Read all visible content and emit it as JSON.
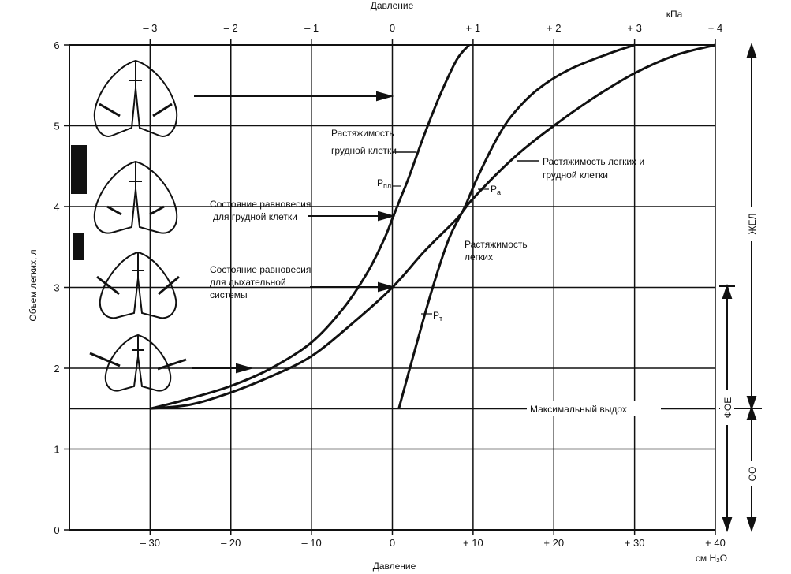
{
  "chart_data": {
    "type": "line",
    "xlabel_top": "Давление",
    "xunit_top": "кПа",
    "xlabel_bottom": "Давление",
    "xunit_bottom": "см H₂O",
    "ylabel": "Объем легких, л",
    "xlim": [
      -40,
      40
    ],
    "ylim": [
      0,
      6
    ],
    "x_ticks": [
      {
        "v": -30,
        "label": "– 30"
      },
      {
        "v": -20,
        "label": "– 20"
      },
      {
        "v": -10,
        "label": "– 10"
      },
      {
        "v": 0,
        "label": "0"
      },
      {
        "v": 10,
        "label": "+ 10"
      },
      {
        "v": 20,
        "label": "+ 20"
      },
      {
        "v": 30,
        "label": "+ 30"
      },
      {
        "v": 40,
        "label": "+ 40"
      }
    ],
    "top_ticks": [
      {
        "v": -3,
        "label": "– 3"
      },
      {
        "v": -2,
        "label": "– 2"
      },
      {
        "v": -1,
        "label": "– 1"
      },
      {
        "v": 0,
        "label": "0"
      },
      {
        "v": 1,
        "label": "+ 1"
      },
      {
        "v": 2,
        "label": "+ 2"
      },
      {
        "v": 3,
        "label": "+ 3"
      },
      {
        "v": 4,
        "label": "+ 4"
      }
    ],
    "y_ticks": [
      {
        "v": 0,
        "label": "0"
      },
      {
        "v": 1,
        "label": "1"
      },
      {
        "v": 2,
        "label": "2"
      },
      {
        "v": 3,
        "label": "3"
      },
      {
        "v": 4,
        "label": "4"
      },
      {
        "v": 5,
        "label": "5"
      },
      {
        "v": 6,
        "label": "6"
      }
    ],
    "series": [
      {
        "name": "Растяжимость грудной клетки",
        "symbol": "P",
        "subscript": "пл",
        "points": [
          [
            -30,
            1.5
          ],
          [
            -26,
            1.6
          ],
          [
            -20,
            1.78
          ],
          [
            -15,
            2.0
          ],
          [
            -10,
            2.32
          ],
          [
            -6,
            2.75
          ],
          [
            -3,
            3.2
          ],
          [
            -1,
            3.6
          ],
          [
            0,
            3.85
          ],
          [
            1,
            4.1
          ],
          [
            2,
            4.35
          ],
          [
            4,
            4.9
          ],
          [
            6,
            5.4
          ],
          [
            8,
            5.82
          ],
          [
            9.5,
            6.0
          ]
        ]
      },
      {
        "name": "Растяжимость легких и грудной клетки",
        "symbol": "P",
        "subscript": "а",
        "points": [
          [
            -30,
            1.5
          ],
          [
            -25,
            1.55
          ],
          [
            -20,
            1.7
          ],
          [
            -15,
            1.9
          ],
          [
            -10,
            2.15
          ],
          [
            -5,
            2.55
          ],
          [
            0,
            3.0
          ],
          [
            4,
            3.45
          ],
          [
            8,
            3.85
          ],
          [
            10,
            4.1
          ],
          [
            15,
            4.6
          ],
          [
            20,
            5.0
          ],
          [
            25,
            5.35
          ],
          [
            30,
            5.65
          ],
          [
            35,
            5.87
          ],
          [
            40,
            6.0
          ]
        ]
      },
      {
        "name": "Растяжимость легких",
        "symbol": "P",
        "subscript": "т",
        "points": [
          [
            0.8,
            1.5
          ],
          [
            3,
            2.3
          ],
          [
            5,
            3.0
          ],
          [
            7,
            3.6
          ],
          [
            9,
            4.0
          ],
          [
            10.5,
            4.35
          ],
          [
            13,
            4.85
          ],
          [
            15,
            5.15
          ],
          [
            18,
            5.45
          ],
          [
            22,
            5.7
          ],
          [
            27,
            5.9
          ],
          [
            30,
            6.0
          ]
        ]
      }
    ],
    "annotations": {
      "chest_line1": "Растяжимость",
      "chest_line2": "грудной клетки",
      "total_line1": "Растяжимость легких и",
      "total_line2": "грудной клетки",
      "lung_line1": "Растяжимость",
      "lung_line2": "легких",
      "eq_chest_line1": "Состояние равновесия",
      "eq_chest_line2": "для грудной клетки",
      "eq_resp_line1": "Состояние равновесия",
      "eq_resp_line2": "для дыхательной",
      "eq_resp_line3": "системы",
      "max_exhale": "Максимальный выдох"
    },
    "brackets": {
      "vc": "ЖЕЛ",
      "frc": "ФОЕ",
      "rv": "ОО"
    }
  }
}
